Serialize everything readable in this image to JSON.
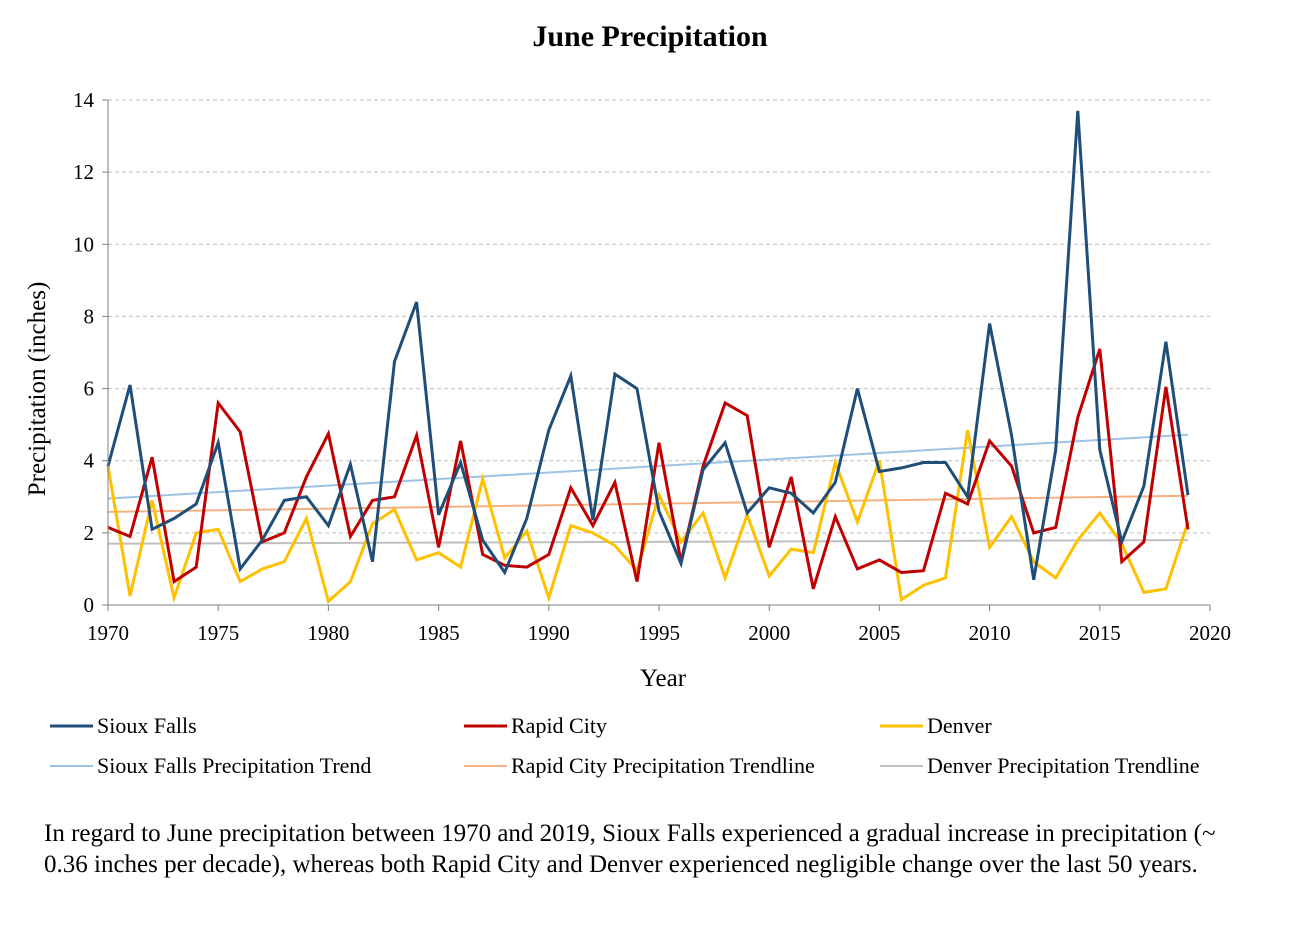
{
  "chart_data": {
    "type": "line",
    "title": "June Precipitation",
    "xlabel": "Year",
    "ylabel": "Precipitation (inches)",
    "xlim": [
      1970,
      2020
    ],
    "ylim": [
      0,
      14
    ],
    "xticks": [
      1970,
      1975,
      1980,
      1985,
      1990,
      1995,
      2000,
      2005,
      2010,
      2015,
      2020
    ],
    "yticks": [
      0,
      2,
      4,
      6,
      8,
      10,
      12,
      14
    ],
    "grid": "horizontal dashed",
    "legend_position": "bottom",
    "x": [
      1970,
      1971,
      1972,
      1973,
      1974,
      1975,
      1976,
      1977,
      1978,
      1979,
      1980,
      1981,
      1982,
      1983,
      1984,
      1985,
      1986,
      1987,
      1988,
      1989,
      1990,
      1991,
      1992,
      1993,
      1994,
      1995,
      1996,
      1997,
      1998,
      1999,
      2000,
      2001,
      2002,
      2003,
      2004,
      2005,
      2006,
      2007,
      2008,
      2009,
      2010,
      2011,
      2012,
      2013,
      2014,
      2015,
      2016,
      2017,
      2018,
      2019
    ],
    "series": [
      {
        "name": "Sioux Falls",
        "color": "#1f4e79",
        "values": [
          3.85,
          6.1,
          2.1,
          2.4,
          2.8,
          4.5,
          1.0,
          1.8,
          2.9,
          3.0,
          2.2,
          3.9,
          1.2,
          6.75,
          8.4,
          2.5,
          3.95,
          1.8,
          0.9,
          2.4,
          4.85,
          6.35,
          2.35,
          6.4,
          6.0,
          2.6,
          1.15,
          3.75,
          4.5,
          2.55,
          3.25,
          3.1,
          2.55,
          3.4,
          6.0,
          3.7,
          3.8,
          3.95,
          3.95,
          3.0,
          7.8,
          4.7,
          0.7,
          4.3,
          13.7,
          4.3,
          1.75,
          3.3,
          7.3,
          3.05
        ]
      },
      {
        "name": "Rapid City",
        "color": "#c00000",
        "values": [
          2.15,
          1.9,
          4.1,
          0.65,
          1.05,
          5.6,
          4.8,
          1.75,
          2.0,
          3.55,
          4.75,
          1.9,
          2.9,
          3.0,
          4.7,
          1.6,
          4.55,
          1.4,
          1.1,
          1.05,
          1.4,
          3.25,
          2.2,
          3.4,
          0.65,
          4.5,
          1.2,
          3.85,
          5.6,
          5.25,
          1.6,
          3.55,
          0.45,
          2.45,
          1.0,
          1.25,
          0.9,
          0.95,
          3.1,
          2.8,
          4.55,
          3.85,
          2.0,
          2.15,
          5.2,
          7.1,
          1.2,
          1.75,
          6.05,
          2.1
        ]
      },
      {
        "name": "Denver",
        "color": "#ffc000",
        "values": [
          3.85,
          0.25,
          2.9,
          0.2,
          2.0,
          2.1,
          0.65,
          1.0,
          1.2,
          2.4,
          0.1,
          0.65,
          2.25,
          2.65,
          1.25,
          1.45,
          1.05,
          3.5,
          1.3,
          2.05,
          0.2,
          2.2,
          2.0,
          1.65,
          0.95,
          3.05,
          1.75,
          2.55,
          0.75,
          2.5,
          0.8,
          1.55,
          1.45,
          3.95,
          2.3,
          4.0,
          0.15,
          0.55,
          0.75,
          4.85,
          1.6,
          2.45,
          1.2,
          0.75,
          1.8,
          2.55,
          1.7,
          0.35,
          0.45,
          2.3
        ]
      }
    ],
    "trendlines": [
      {
        "name": "Sioux Falls Precipitation Trend",
        "color": "#9dc3e6",
        "start": [
          1970,
          2.95
        ],
        "end": [
          2019,
          4.72
        ]
      },
      {
        "name": "Rapid City Precipitation Trendline",
        "color": "#f4b183",
        "start": [
          1970,
          2.58
        ],
        "end": [
          2019,
          3.03
        ]
      },
      {
        "name": "Denver Precipitation Trendline",
        "color": "#bfbfbf",
        "start": [
          1970,
          1.7
        ],
        "end": [
          2019,
          1.8
        ]
      }
    ]
  },
  "caption": "In regard to June precipitation between 1970 and 2019, Sioux Falls experienced a gradual increase in precipitation (~ 0.36 inches per decade), whereas both Rapid City and Denver experienced negligible change over the last 50 years."
}
